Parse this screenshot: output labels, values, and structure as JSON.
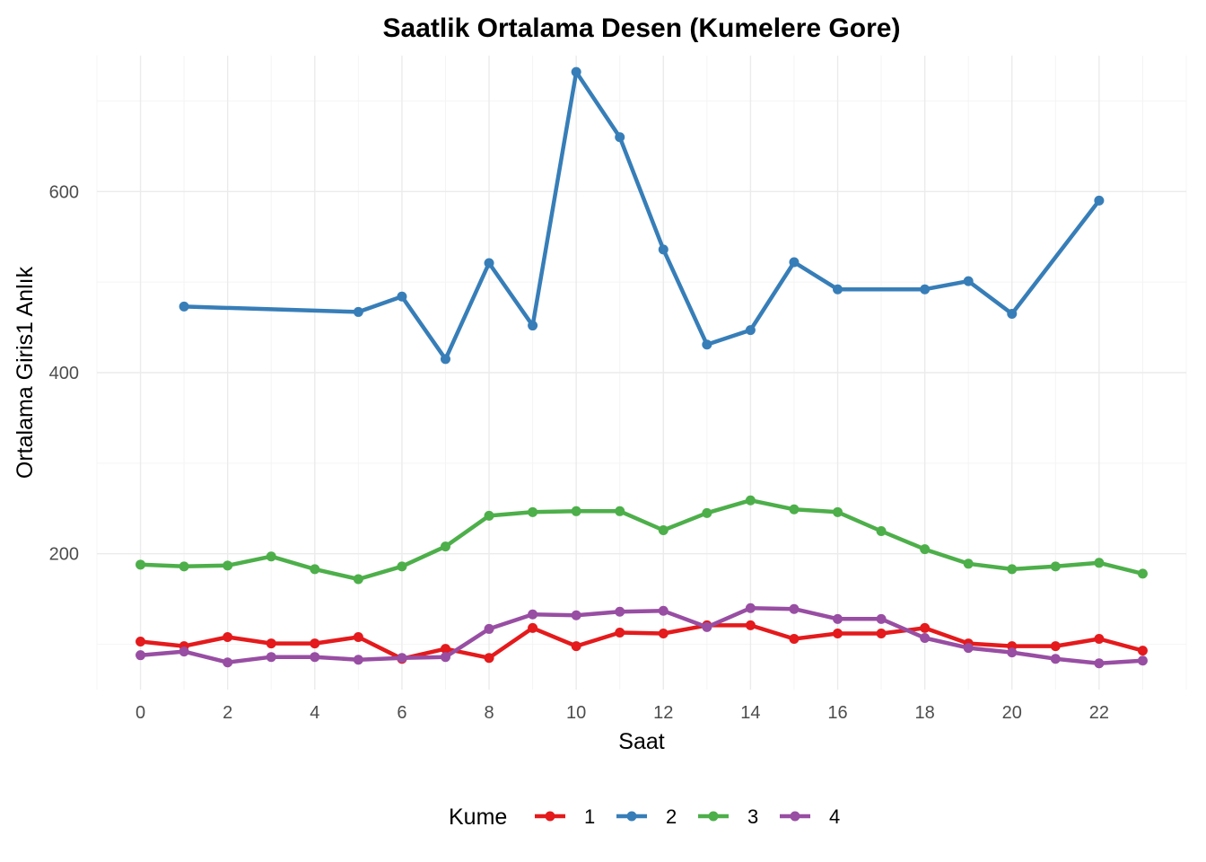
{
  "chart_data": {
    "type": "line",
    "title": "Saatlik Ortalama Desen (Kumelere Gore)",
    "xlabel": "Saat",
    "ylabel": "Ortalama Giris1 Anlık",
    "xlim": [
      -1,
      24
    ],
    "ylim": [
      50,
      750
    ],
    "x_ticks": [
      0,
      2,
      4,
      6,
      8,
      10,
      12,
      14,
      16,
      18,
      20,
      22
    ],
    "x_tick_labels": [
      "0",
      "2",
      "4",
      "6",
      "8",
      "10",
      "12",
      "14",
      "16",
      "18",
      "20",
      "22"
    ],
    "y_ticks": [
      200,
      400,
      600
    ],
    "y_tick_labels": [
      "200",
      "400",
      "600"
    ],
    "y_minor_ticks": [
      100,
      300,
      500,
      700
    ],
    "grid": true,
    "legend": {
      "title": "Kume",
      "position": "bottom"
    },
    "series": [
      {
        "name": "1",
        "color": "#E41A1C",
        "points": [
          [
            0,
            103
          ],
          [
            1,
            98
          ],
          [
            2,
            108
          ],
          [
            3,
            101
          ],
          [
            4,
            101
          ],
          [
            5,
            108
          ],
          [
            6,
            84
          ],
          [
            7,
            95
          ],
          [
            8,
            85
          ],
          [
            9,
            118
          ],
          [
            10,
            98
          ],
          [
            11,
            113
          ],
          [
            12,
            112
          ],
          [
            13,
            121
          ],
          [
            14,
            121
          ],
          [
            15,
            106
          ],
          [
            16,
            112
          ],
          [
            17,
            112
          ],
          [
            18,
            118
          ],
          [
            19,
            101
          ],
          [
            20,
            98
          ],
          [
            21,
            98
          ],
          [
            22,
            106
          ],
          [
            23,
            93
          ]
        ]
      },
      {
        "name": "2",
        "color": "#377EB8",
        "points": [
          [
            1,
            473
          ],
          [
            5,
            467
          ],
          [
            6,
            484
          ],
          [
            7,
            415
          ],
          [
            8,
            521
          ],
          [
            9,
            452
          ],
          [
            10,
            732
          ],
          [
            11,
            660
          ],
          [
            12,
            536
          ],
          [
            13,
            431
          ],
          [
            14,
            447
          ],
          [
            15,
            522
          ],
          [
            16,
            492
          ],
          [
            18,
            492
          ],
          [
            19,
            501
          ],
          [
            20,
            465
          ],
          [
            22,
            590
          ]
        ]
      },
      {
        "name": "3",
        "color": "#4DAF4A",
        "points": [
          [
            0,
            188
          ],
          [
            1,
            186
          ],
          [
            2,
            187
          ],
          [
            3,
            197
          ],
          [
            4,
            183
          ],
          [
            5,
            172
          ],
          [
            6,
            186
          ],
          [
            7,
            208
          ],
          [
            8,
            242
          ],
          [
            9,
            246
          ],
          [
            10,
            247
          ],
          [
            11,
            247
          ],
          [
            12,
            226
          ],
          [
            13,
            245
          ],
          [
            14,
            259
          ],
          [
            15,
            249
          ],
          [
            16,
            246
          ],
          [
            17,
            225
          ],
          [
            18,
            205
          ],
          [
            19,
            189
          ],
          [
            20,
            183
          ],
          [
            21,
            186
          ],
          [
            22,
            190
          ],
          [
            23,
            178
          ]
        ]
      },
      {
        "name": "4",
        "color": "#984EA3",
        "points": [
          [
            0,
            88
          ],
          [
            1,
            92
          ],
          [
            2,
            80
          ],
          [
            3,
            86
          ],
          [
            4,
            86
          ],
          [
            5,
            83
          ],
          [
            6,
            85
          ],
          [
            7,
            86
          ],
          [
            8,
            117
          ],
          [
            9,
            133
          ],
          [
            10,
            132
          ],
          [
            11,
            136
          ],
          [
            12,
            137
          ],
          [
            13,
            119
          ],
          [
            14,
            140
          ],
          [
            15,
            139
          ],
          [
            16,
            128
          ],
          [
            17,
            128
          ],
          [
            18,
            107
          ],
          [
            19,
            96
          ],
          [
            20,
            91
          ],
          [
            21,
            84
          ],
          [
            22,
            79
          ],
          [
            23,
            82
          ]
        ]
      }
    ]
  }
}
